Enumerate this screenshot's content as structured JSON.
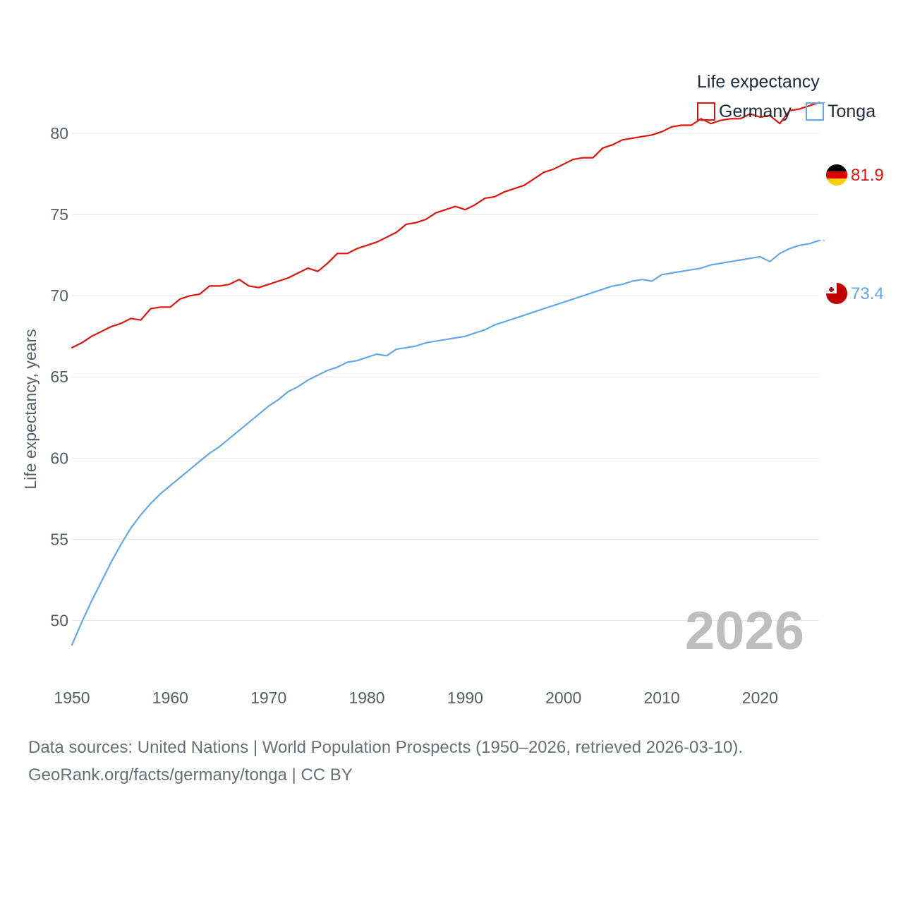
{
  "chart_data": {
    "type": "line",
    "ylabel": "Life expectancy, years",
    "xlabel": "",
    "xlim": [
      1950,
      2026
    ],
    "ylim": [
      46.5,
      83
    ],
    "x_ticks": [
      1950,
      1960,
      1970,
      1980,
      1990,
      2000,
      2010,
      2020
    ],
    "y_ticks": [
      50,
      55,
      60,
      65,
      70,
      75,
      80
    ],
    "legend_title": "Life expectancy",
    "legend_position": "top-right",
    "year_label": "2026",
    "series": [
      {
        "name": "Germany",
        "color": "#e3120b",
        "end_label": "81.9",
        "flag": "germany-flag",
        "x": [
          1950,
          1951,
          1952,
          1953,
          1954,
          1955,
          1956,
          1957,
          1958,
          1959,
          1960,
          1961,
          1962,
          1963,
          1964,
          1965,
          1966,
          1967,
          1968,
          1969,
          1970,
          1971,
          1972,
          1973,
          1974,
          1975,
          1976,
          1977,
          1978,
          1979,
          1980,
          1981,
          1982,
          1983,
          1984,
          1985,
          1986,
          1987,
          1988,
          1989,
          1990,
          1991,
          1992,
          1993,
          1994,
          1995,
          1996,
          1997,
          1998,
          1999,
          2000,
          2001,
          2002,
          2003,
          2004,
          2005,
          2006,
          2007,
          2008,
          2009,
          2010,
          2011,
          2012,
          2013,
          2014,
          2015,
          2016,
          2017,
          2018,
          2019,
          2020,
          2021,
          2022,
          2023,
          2024,
          2025,
          2026
        ],
        "values": [
          66.8,
          67.1,
          67.5,
          67.8,
          68.1,
          68.3,
          68.6,
          68.5,
          69.2,
          69.3,
          69.3,
          69.8,
          70.0,
          70.1,
          70.6,
          70.6,
          70.7,
          71.0,
          70.6,
          70.5,
          70.7,
          70.9,
          71.1,
          71.4,
          71.7,
          71.5,
          72.0,
          72.6,
          72.6,
          72.9,
          73.1,
          73.3,
          73.6,
          73.9,
          74.4,
          74.5,
          74.7,
          75.1,
          75.3,
          75.5,
          75.3,
          75.6,
          76.0,
          76.1,
          76.4,
          76.6,
          76.8,
          77.2,
          77.6,
          77.8,
          78.1,
          78.4,
          78.5,
          78.5,
          79.1,
          79.3,
          79.6,
          79.7,
          79.8,
          79.9,
          80.1,
          80.4,
          80.5,
          80.5,
          80.9,
          80.6,
          80.8,
          80.9,
          80.9,
          81.2,
          81.0,
          81.1,
          80.6,
          81.4,
          81.5,
          81.7,
          81.9
        ]
      },
      {
        "name": "Tonga",
        "color": "#62a8e5",
        "end_label": "73.4",
        "flag": "tonga-flag",
        "x": [
          1950,
          1951,
          1952,
          1953,
          1954,
          1955,
          1956,
          1957,
          1958,
          1959,
          1960,
          1961,
          1962,
          1963,
          1964,
          1965,
          1966,
          1967,
          1968,
          1969,
          1970,
          1971,
          1972,
          1973,
          1974,
          1975,
          1976,
          1977,
          1978,
          1979,
          1980,
          1981,
          1982,
          1983,
          1984,
          1985,
          1986,
          1987,
          1988,
          1989,
          1990,
          1991,
          1992,
          1993,
          1994,
          1995,
          1996,
          1997,
          1998,
          1999,
          2000,
          2001,
          2002,
          2003,
          2004,
          2005,
          2006,
          2007,
          2008,
          2009,
          2010,
          2011,
          2012,
          2013,
          2014,
          2015,
          2016,
          2017,
          2018,
          2019,
          2020,
          2021,
          2022,
          2023,
          2024,
          2025,
          2026
        ],
        "values": [
          48.5,
          49.9,
          51.2,
          52.4,
          53.6,
          54.7,
          55.7,
          56.5,
          57.2,
          57.8,
          58.3,
          58.8,
          59.3,
          59.8,
          60.3,
          60.7,
          61.2,
          61.7,
          62.2,
          62.7,
          63.2,
          63.6,
          64.1,
          64.4,
          64.8,
          65.1,
          65.4,
          65.6,
          65.9,
          66.0,
          66.2,
          66.4,
          66.3,
          66.7,
          66.8,
          66.9,
          67.1,
          67.2,
          67.3,
          67.4,
          67.5,
          67.7,
          67.9,
          68.2,
          68.4,
          68.6,
          68.8,
          69.0,
          69.2,
          69.4,
          69.6,
          69.8,
          70.0,
          70.2,
          70.4,
          70.6,
          70.7,
          70.9,
          71.0,
          70.9,
          71.3,
          71.4,
          71.5,
          71.6,
          71.7,
          71.9,
          72.0,
          72.1,
          72.2,
          72.3,
          72.4,
          72.1,
          72.6,
          72.9,
          73.1,
          73.2,
          73.4
        ]
      }
    ]
  },
  "footer": {
    "sources": "Data sources: United Nations | World Population Prospects (1950–2026, retrieved 2026-03-10).",
    "attribution": "GeoRank.org/facts/germany/tonga | CC BY"
  }
}
